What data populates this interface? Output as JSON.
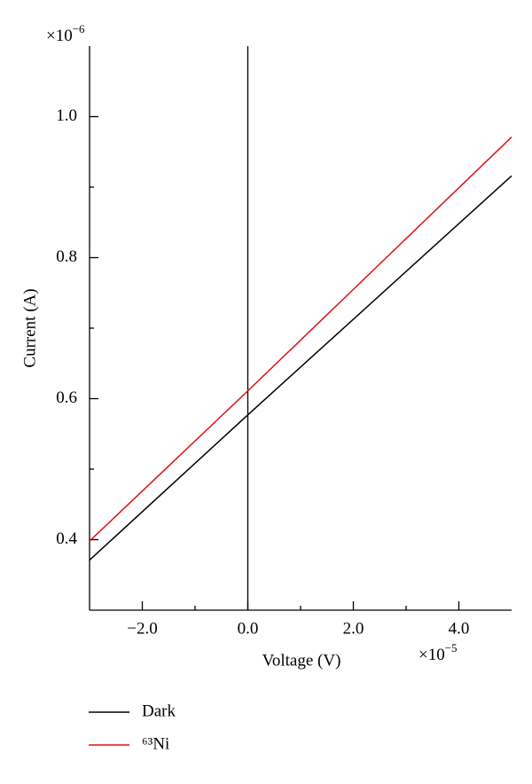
{
  "chart_data": {
    "type": "line",
    "x_label": "Voltage (V)",
    "y_label": "Current (A)",
    "x_multiplier": {
      "base": "×10",
      "exponent": "−5"
    },
    "y_multiplier": {
      "base": "×10",
      "exponent": "−6"
    },
    "x": [
      -3,
      0,
      5
    ],
    "series": [
      {
        "name": "Dark",
        "color": "#000000",
        "values": [
          0.371,
          0.577,
          0.916
        ]
      },
      {
        "name": "⁶³Ni",
        "color": "#e01010",
        "values": [
          0.398,
          0.611,
          0.971
        ]
      }
    ],
    "xlim": [
      -3,
      5
    ],
    "ylim": [
      0.3,
      1.1
    ],
    "xticks": [
      {
        "value": -2,
        "label": "−2.0"
      },
      {
        "value": 0,
        "label": "0.0"
      },
      {
        "value": 2,
        "label": "2.0"
      },
      {
        "value": 4,
        "label": "4.0"
      }
    ],
    "yticks": [
      {
        "value": 0.4,
        "label": "0.4"
      },
      {
        "value": 0.6,
        "label": "0.6"
      },
      {
        "value": 0.8,
        "label": "0.8"
      },
      {
        "value": 1,
        "label": "1.0"
      }
    ],
    "xminorticks": [
      -1,
      1,
      3
    ],
    "yminorticks": [
      0.5,
      0.7,
      0.9
    ],
    "vline": 0,
    "grid": false,
    "legend": "bottom-left"
  }
}
